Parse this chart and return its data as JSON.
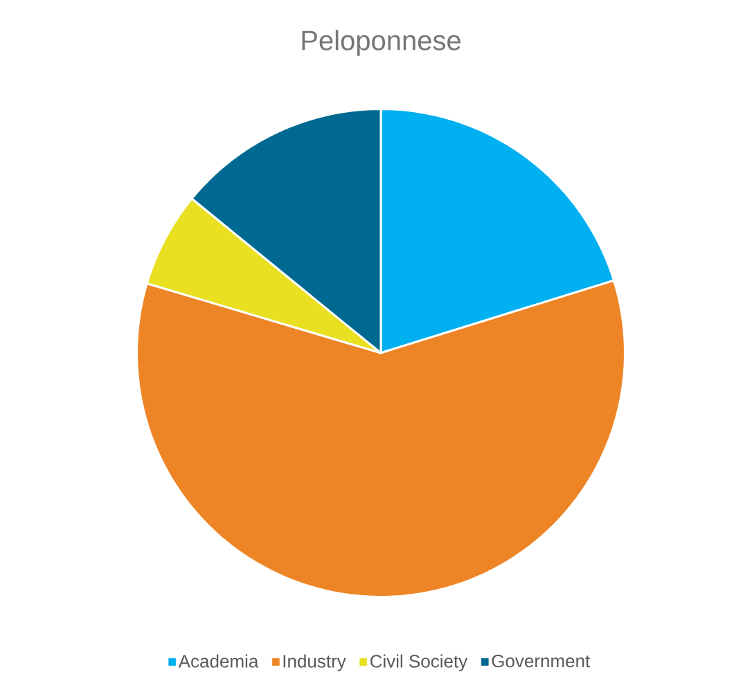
{
  "chart_data": {
    "type": "pie",
    "title": "Peloponnese",
    "categories": [
      "Academia",
      "Industry",
      "Civil Society",
      "Government"
    ],
    "values": [
      20.2,
      59.4,
      6.3,
      14.1
    ],
    "colors": [
      "#00b0f0",
      "#ed8526",
      "#e8e020",
      "#006992"
    ],
    "legend": "bottom"
  }
}
